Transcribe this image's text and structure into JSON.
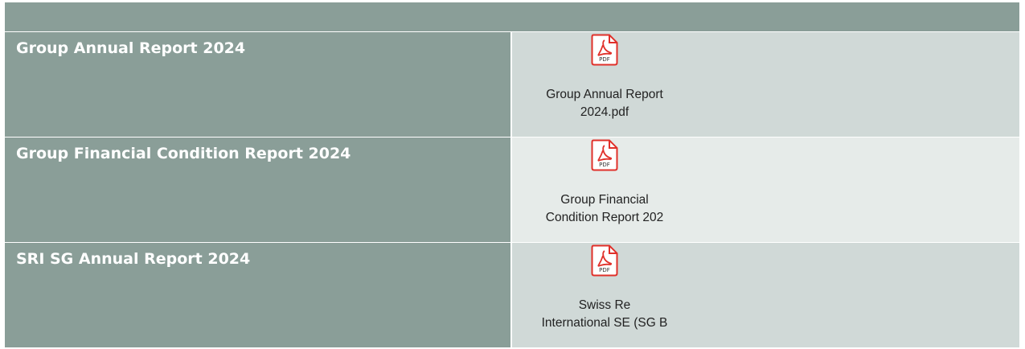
{
  "table": {
    "rows": [
      {
        "title": "Group Annual Report 2024",
        "icon": "PDF",
        "file": [
          "Group Annual Report",
          "2024.pdf"
        ]
      },
      {
        "title": "Group Financial Condition Report 2024",
        "icon": "PDF",
        "file": [
          "Group Financial",
          "Condition Report 202"
        ]
      },
      {
        "title": "SRI SG Annual Report 2024",
        "icon": "PDF",
        "file": [
          "Swiss Re",
          "International SE (SG B"
        ]
      }
    ]
  }
}
